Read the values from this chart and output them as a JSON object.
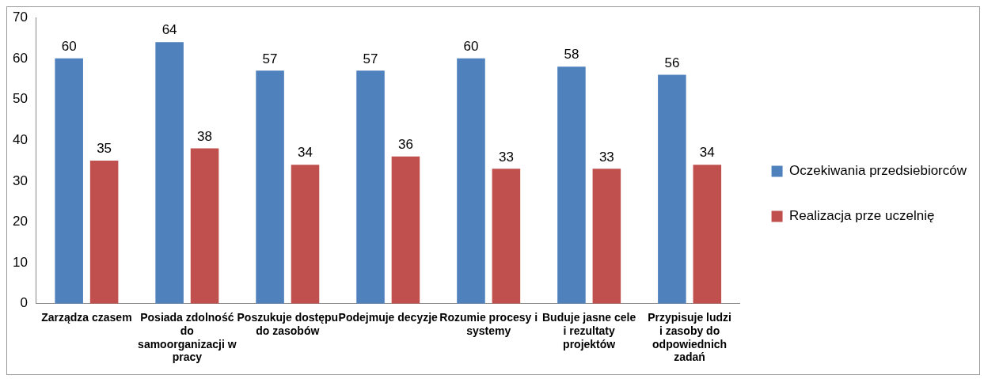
{
  "chart_data": {
    "type": "bar",
    "categories": [
      "Zarządza czasem",
      "Posiada zdolność do samoorganizacji w pracy",
      "Poszukuje dostępu do zasobów",
      "Podejmuje decyzje",
      "Rozumie procesy i systemy",
      "Buduje jasne cele i rezultaty projektów",
      "Przypisuje ludzi i zasoby do odpowiednich zadań"
    ],
    "series": [
      {
        "name": "Oczekiwania przedsiebiorców",
        "color": "#4f81bd",
        "values": [
          60,
          64,
          57,
          57,
          60,
          58,
          56
        ]
      },
      {
        "name": "Realizacja prze uczelnię",
        "color": "#c0504d",
        "values": [
          35,
          38,
          34,
          36,
          33,
          33,
          34
        ]
      }
    ],
    "ylim": [
      0,
      70
    ],
    "yticks": [
      0,
      10,
      20,
      30,
      40,
      50,
      60,
      70
    ],
    "grid": false,
    "legend": "right",
    "data_labels": true
  }
}
